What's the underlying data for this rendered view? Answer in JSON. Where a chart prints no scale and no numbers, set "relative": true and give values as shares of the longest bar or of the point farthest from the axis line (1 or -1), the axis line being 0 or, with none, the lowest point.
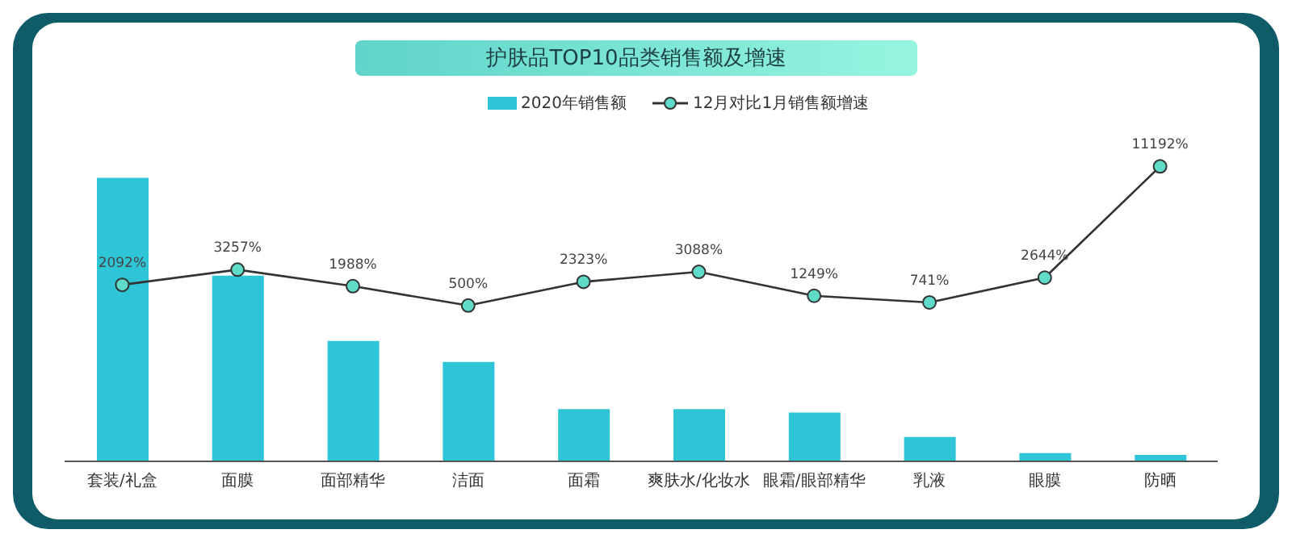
{
  "chart_data": [
    {
      "type": "bar",
      "relative": true,
      "title": "护肤品TOP10品类销售额及增速",
      "legend": "top",
      "categories": [
        "套装/礼盒",
        "面膜",
        "面部精华",
        "洁面",
        "面霜",
        "爽肤水/化妆水",
        "眼霜/眼部精华",
        "乳液",
        "眼膜",
        "防晒"
      ],
      "series": [
        {
          "name": "2020年销售额",
          "color": "#2ec6d6",
          "values": [
            1,
            0.655,
            0.425,
            0.351,
            0.184,
            0.184,
            0.172,
            0.086,
            0.029,
            0.023
          ]
        }
      ]
    },
    {
      "type": "line",
      "legend": "top",
      "marker": "circle",
      "categories": [
        null,
        null,
        null,
        null,
        null,
        null,
        null,
        null,
        null,
        null
      ],
      "series": [
        {
          "name": "12月对比1月销售额增速",
          "color": "#333333",
          "value_labels": [
            "2092%",
            "3257%",
            "1988%",
            "500%",
            "2323%",
            "3088%",
            "1249%",
            "741%",
            "2644%",
            "11192%"
          ],
          "values": [
            2092,
            3257,
            1988,
            500,
            2323,
            3088,
            1249,
            741,
            2644,
            11192
          ]
        }
      ]
    }
  ]
}
